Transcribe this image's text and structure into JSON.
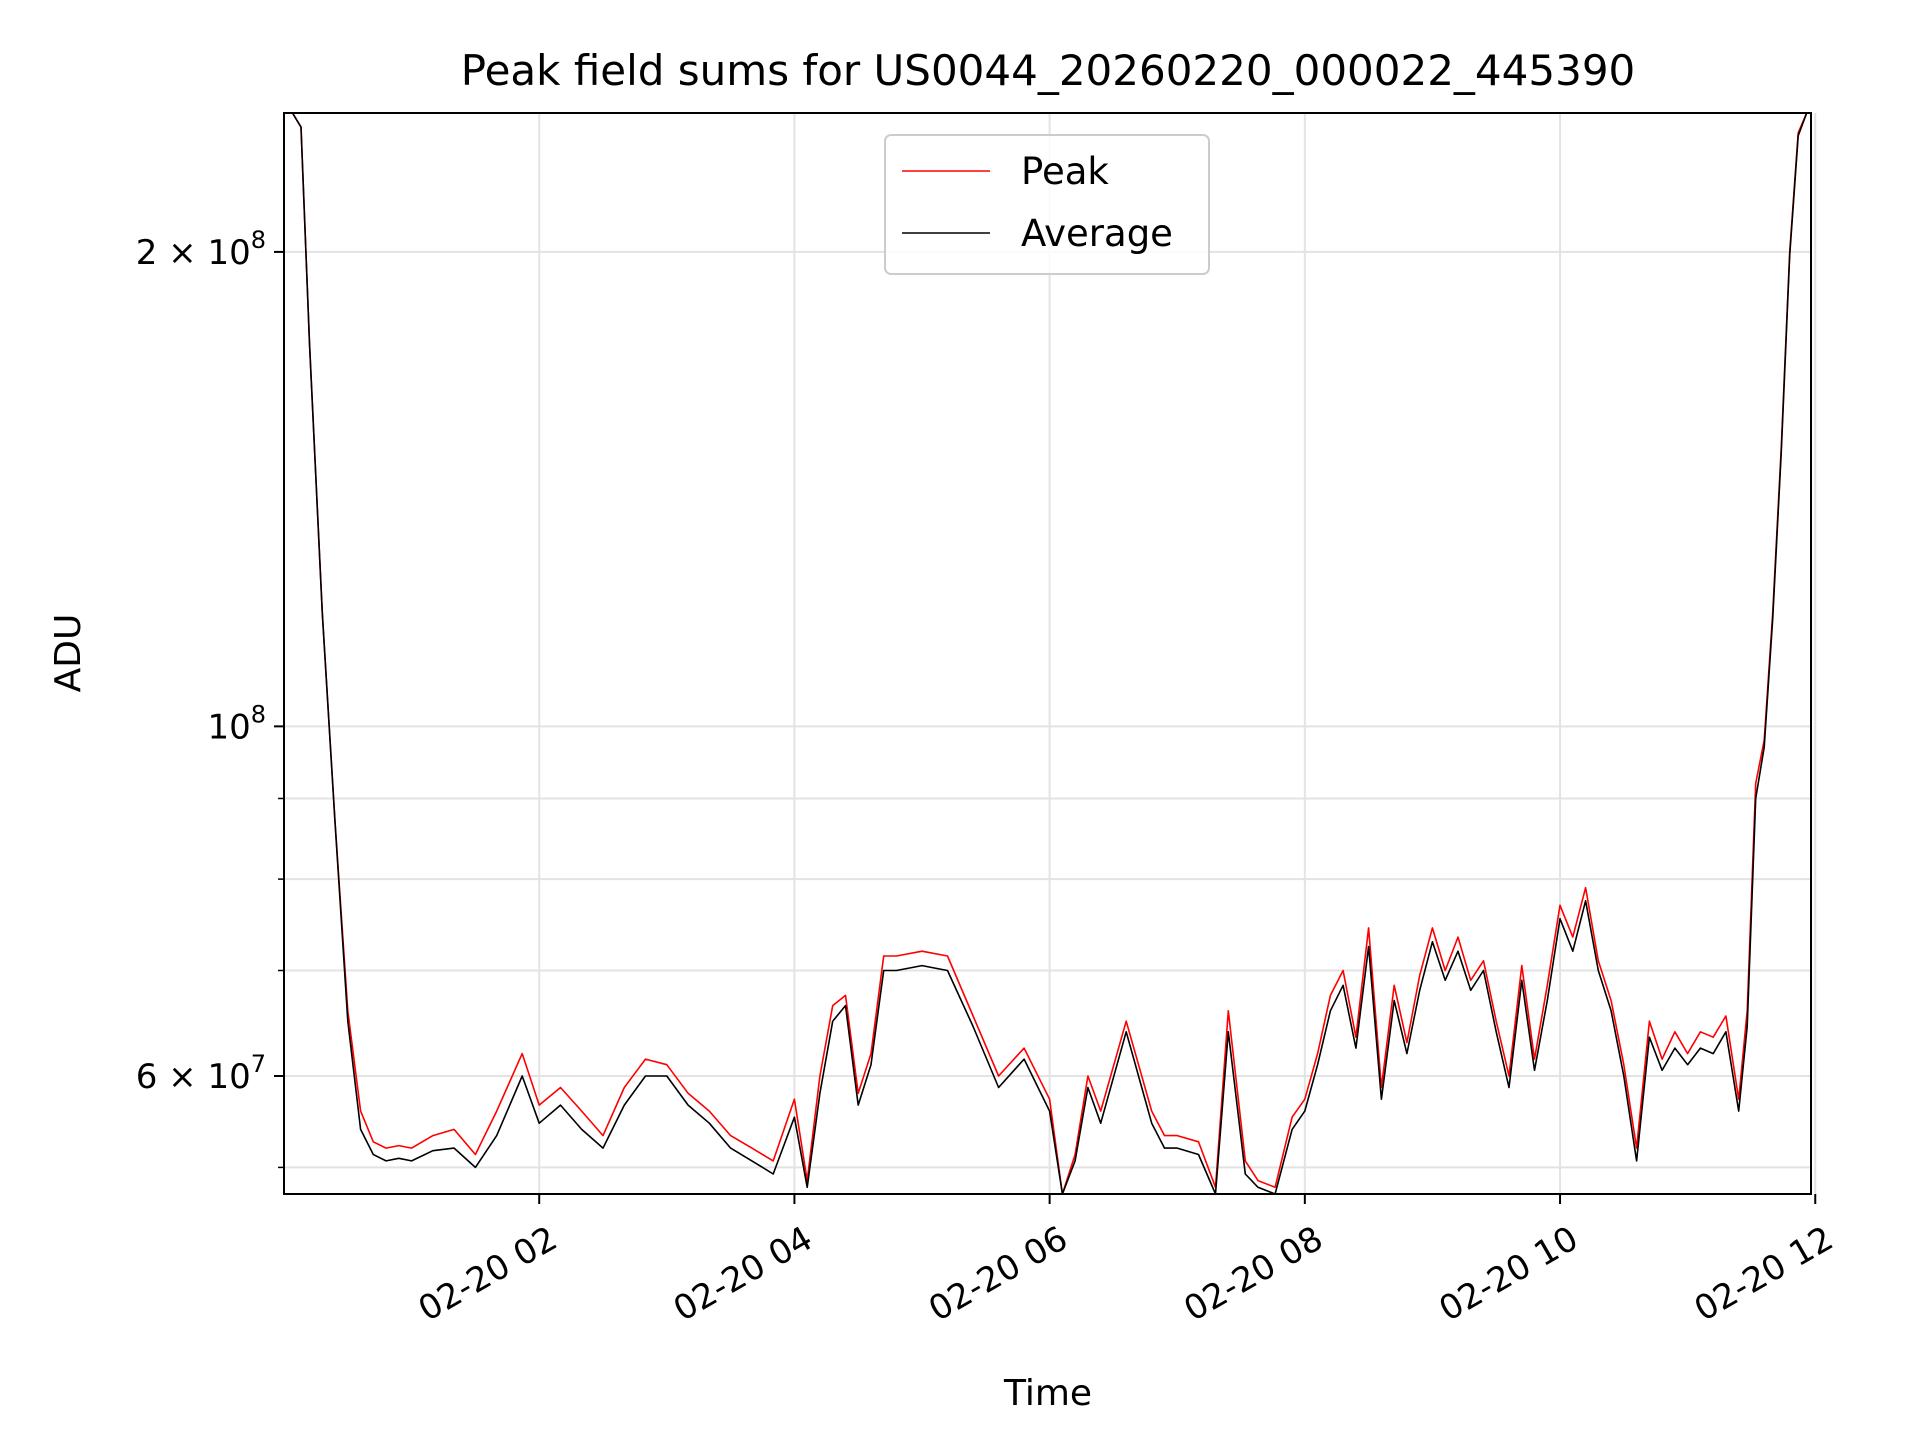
{
  "chart_data": {
    "type": "line",
    "title": "Peak field sums for US0044_20260220_000022_445390",
    "xlabel": "Time",
    "ylabel": "ADU",
    "yscale": "log",
    "ylim": [
      50500000,
      245000000
    ],
    "xlim": [
      "2026-02-20 00:00",
      "2026-02-20 11:58"
    ],
    "grid": true,
    "legend": {
      "placement": "upper center",
      "entries": [
        "Peak",
        "Average"
      ]
    },
    "x_ticks": [
      {
        "value": "2026-02-20 02:00",
        "label": "02-20 02"
      },
      {
        "value": "2026-02-20 04:00",
        "label": "02-20 04"
      },
      {
        "value": "2026-02-20 06:00",
        "label": "02-20 06"
      },
      {
        "value": "2026-02-20 08:00",
        "label": "02-20 08"
      },
      {
        "value": "2026-02-20 10:00",
        "label": "02-20 10"
      },
      {
        "value": "2026-02-20 12:00",
        "label": "02-20 12"
      }
    ],
    "y_ticks": [
      {
        "value": 200000000,
        "mantissa": "2",
        "times": "×",
        "base": "10",
        "exp": "8"
      },
      {
        "value": 100000000,
        "mantissa": "",
        "times": "",
        "base": "10",
        "exp": "8"
      },
      {
        "value": 60000000,
        "mantissa": "6",
        "times": "×",
        "base": "10",
        "exp": "7"
      }
    ],
    "y_minor_ticks": [
      70000000,
      80000000,
      90000000
    ],
    "series": [
      {
        "name": "Peak",
        "color": "#ff0000",
        "x": [
          "00:04",
          "00:08",
          "00:12",
          "00:18",
          "00:24",
          "00:30",
          "00:36",
          "00:42",
          "00:48",
          "00:54",
          "01:00",
          "01:10",
          "01:20",
          "01:30",
          "01:40",
          "01:52",
          "02:00",
          "02:10",
          "02:20",
          "02:30",
          "02:40",
          "02:50",
          "03:00",
          "03:10",
          "03:20",
          "03:30",
          "03:40",
          "03:50",
          "04:00",
          "04:06",
          "04:12",
          "04:18",
          "04:24",
          "04:30",
          "04:36",
          "04:42",
          "04:48",
          "05:00",
          "05:12",
          "05:24",
          "05:36",
          "05:48",
          "06:00",
          "06:06",
          "06:12",
          "06:18",
          "06:24",
          "06:36",
          "06:48",
          "06:54",
          "07:00",
          "07:10",
          "07:18",
          "07:24",
          "07:32",
          "07:38",
          "07:46",
          "07:54",
          "08:00",
          "08:06",
          "08:12",
          "08:18",
          "08:24",
          "08:30",
          "08:36",
          "08:42",
          "08:48",
          "08:54",
          "09:00",
          "09:06",
          "09:12",
          "09:18",
          "09:24",
          "09:30",
          "09:36",
          "09:42",
          "09:48",
          "09:54",
          "10:00",
          "10:06",
          "10:12",
          "10:18",
          "10:24",
          "10:30",
          "10:36",
          "10:42",
          "10:48",
          "10:54",
          "11:00",
          "11:06",
          "11:12",
          "11:18",
          "11:24",
          "11:28",
          "11:32",
          "11:36",
          "11:40",
          "11:44",
          "11:48",
          "11:52",
          "11:56"
        ],
        "y": [
          245000000,
          240000000,
          175000000,
          118000000,
          87000000,
          66000000,
          57000000,
          54500000,
          54000000,
          54200000,
          54000000,
          55000000,
          55500000,
          53500000,
          57000000,
          62000000,
          57500000,
          59000000,
          57000000,
          55000000,
          59000000,
          61500000,
          61000000,
          58500000,
          57000000,
          55000000,
          54000000,
          53000000,
          58000000,
          51500000,
          60000000,
          66500000,
          67500000,
          58500000,
          62000000,
          71500000,
          71500000,
          72000000,
          71500000,
          65500000,
          60000000,
          62500000,
          58000000,
          50500000,
          53500000,
          60000000,
          57000000,
          65000000,
          57000000,
          55000000,
          55000000,
          54500000,
          51000000,
          66000000,
          53000000,
          51500000,
          51000000,
          56500000,
          58000000,
          62000000,
          67500000,
          70000000,
          63500000,
          74500000,
          59000000,
          68500000,
          63000000,
          69500000,
          74500000,
          70000000,
          73500000,
          69000000,
          71000000,
          65000000,
          60000000,
          70500000,
          61500000,
          68500000,
          77000000,
          73500000,
          79000000,
          71000000,
          67000000,
          61000000,
          54000000,
          65000000,
          61500000,
          64000000,
          62000000,
          64000000,
          63500000,
          65500000,
          58000000,
          66000000,
          92000000,
          98000000,
          118000000,
          150000000,
          200000000,
          238000000,
          245000000
        ]
      },
      {
        "name": "Average",
        "color": "#000000",
        "x": [
          "00:04",
          "00:08",
          "00:12",
          "00:18",
          "00:24",
          "00:30",
          "00:36",
          "00:42",
          "00:48",
          "00:54",
          "01:00",
          "01:10",
          "01:20",
          "01:30",
          "01:40",
          "01:52",
          "02:00",
          "02:10",
          "02:20",
          "02:30",
          "02:40",
          "02:50",
          "03:00",
          "03:10",
          "03:20",
          "03:30",
          "03:40",
          "03:50",
          "04:00",
          "04:06",
          "04:12",
          "04:18",
          "04:24",
          "04:30",
          "04:36",
          "04:42",
          "04:48",
          "05:00",
          "05:12",
          "05:24",
          "05:36",
          "05:48",
          "06:00",
          "06:06",
          "06:12",
          "06:18",
          "06:24",
          "06:36",
          "06:48",
          "06:54",
          "07:00",
          "07:10",
          "07:18",
          "07:24",
          "07:32",
          "07:38",
          "07:46",
          "07:54",
          "08:00",
          "08:06",
          "08:12",
          "08:18",
          "08:24",
          "08:30",
          "08:36",
          "08:42",
          "08:48",
          "08:54",
          "09:00",
          "09:06",
          "09:12",
          "09:18",
          "09:24",
          "09:30",
          "09:36",
          "09:42",
          "09:48",
          "09:54",
          "10:00",
          "10:06",
          "10:12",
          "10:18",
          "10:24",
          "10:30",
          "10:36",
          "10:42",
          "10:48",
          "10:54",
          "11:00",
          "11:06",
          "11:12",
          "11:18",
          "11:24",
          "11:28",
          "11:32",
          "11:36",
          "11:40",
          "11:44",
          "11:48",
          "11:52",
          "11:56"
        ],
        "y": [
          245000000,
          240000000,
          175000000,
          118000000,
          87000000,
          65000000,
          55500000,
          53500000,
          53000000,
          53200000,
          53000000,
          53800000,
          54000000,
          52500000,
          55000000,
          60000000,
          56000000,
          57500000,
          55500000,
          54000000,
          57500000,
          60000000,
          60000000,
          57500000,
          56000000,
          54000000,
          53000000,
          52000000,
          56500000,
          51000000,
          58500000,
          65000000,
          66500000,
          57500000,
          61000000,
          70000000,
          70000000,
          70500000,
          70000000,
          64500000,
          59000000,
          61500000,
          57000000,
          50500000,
          53000000,
          59000000,
          56000000,
          64000000,
          56000000,
          54000000,
          54000000,
          53500000,
          50500000,
          64000000,
          52000000,
          51000000,
          50500000,
          55500000,
          57000000,
          61000000,
          66000000,
          68500000,
          62500000,
          72500000,
          58000000,
          67000000,
          62000000,
          68000000,
          73000000,
          69000000,
          72000000,
          68000000,
          70000000,
          64000000,
          59000000,
          69000000,
          60500000,
          67000000,
          75500000,
          72000000,
          77500000,
          70000000,
          66000000,
          60000000,
          53000000,
          63500000,
          60500000,
          62500000,
          61000000,
          62500000,
          62000000,
          64000000,
          57000000,
          64500000,
          90000000,
          97000000,
          117000000,
          149000000,
          199000000,
          237000000,
          245000000
        ]
      }
    ]
  }
}
